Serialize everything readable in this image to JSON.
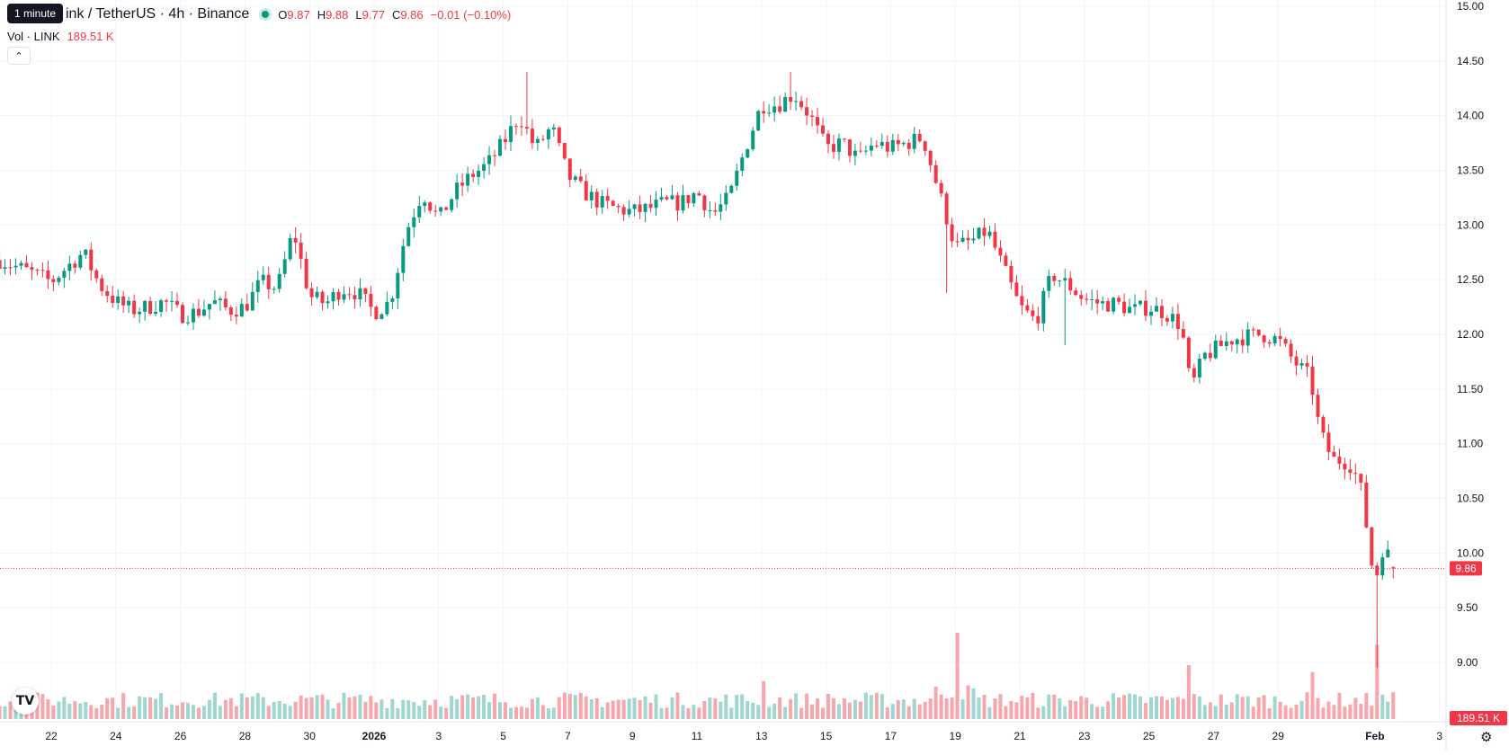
{
  "tooltip": "1 minute",
  "header": {
    "symbol": "Chainlink / TetherUS · 4h · Binance",
    "visible_symbol": "ink / TetherUS · 4h · Binance",
    "ohlc": [
      {
        "key": "O",
        "value": "9.87"
      },
      {
        "key": "H",
        "value": "9.88"
      },
      {
        "key": "L",
        "value": "9.77"
      },
      {
        "key": "C",
        "value": "9.86"
      }
    ],
    "change": "−0.01 (−0.10%)"
  },
  "volume_legend": {
    "label": "Vol · LINK",
    "value": "189.51 K"
  },
  "price_axis": {
    "ticks": [
      "15.00",
      "14.50",
      "14.00",
      "13.50",
      "13.00",
      "12.50",
      "12.00",
      "11.50",
      "11.00",
      "10.50",
      "10.00",
      "9.50",
      "9.00"
    ],
    "last_price": "9.86",
    "last_volume": "189.51 K"
  },
  "time_axis": {
    "labels": [
      "22",
      "24",
      "26",
      "28",
      "30",
      "2026",
      "3",
      "5",
      "7",
      "9",
      "11",
      "13",
      "15",
      "17",
      "19",
      "21",
      "23",
      "25",
      "27",
      "29",
      "Feb",
      "3"
    ]
  },
  "icons": {
    "logo": "tradingview-logo-icon",
    "settings": "gear-icon",
    "collapse": "chevron-up-icon"
  },
  "colors": {
    "up": "#089981",
    "down": "#f23645",
    "vol_up": "#9fd6cf",
    "vol_down": "#f7a6ac"
  },
  "chart_data": {
    "type": "candlestick",
    "interval": "4h",
    "ylim": [
      8.75,
      15.0
    ],
    "x_unit": "day index (0 = Dec 22, 10 = Jan 1 2026, 41 = Feb 1, 43 = Feb 3)",
    "xlim": [
      -1.62,
      42.7
    ],
    "grid": true,
    "last_price": 9.86,
    "keypoints": [
      [
        -1.6,
        12.68
      ],
      [
        -0.5,
        12.55
      ],
      [
        0.0,
        12.48
      ],
      [
        0.5,
        12.62
      ],
      [
        1.0,
        12.75
      ],
      [
        1.5,
        12.45
      ],
      [
        2.0,
        12.3
      ],
      [
        2.5,
        12.22
      ],
      [
        3.0,
        12.25
      ],
      [
        3.5,
        12.3
      ],
      [
        4.0,
        12.18
      ],
      [
        4.5,
        12.2
      ],
      [
        5.0,
        12.3
      ],
      [
        5.5,
        12.22
      ],
      [
        6.0,
        12.25
      ],
      [
        6.5,
        12.48
      ],
      [
        7.0,
        12.42
      ],
      [
        7.5,
        12.95
      ],
      [
        8.0,
        12.35
      ],
      [
        8.5,
        12.28
      ],
      [
        9.0,
        12.42
      ],
      [
        9.5,
        12.38
      ],
      [
        10.0,
        12.2
      ],
      [
        10.5,
        12.3
      ],
      [
        11.0,
        12.95
      ],
      [
        11.5,
        13.3
      ],
      [
        12.0,
        13.05
      ],
      [
        12.5,
        13.3
      ],
      [
        13.0,
        13.45
      ],
      [
        13.5,
        13.55
      ],
      [
        14.0,
        13.75
      ],
      [
        14.5,
        14.0
      ],
      [
        15.0,
        13.7
      ],
      [
        15.5,
        13.9
      ],
      [
        16.0,
        13.45
      ],
      [
        16.5,
        13.3
      ],
      [
        17.0,
        13.2
      ],
      [
        17.5,
        13.15
      ],
      [
        18.0,
        13.12
      ],
      [
        18.5,
        13.15
      ],
      [
        19.0,
        13.2
      ],
      [
        19.5,
        13.2
      ],
      [
        20.0,
        13.3
      ],
      [
        20.5,
        13.1
      ],
      [
        21.0,
        13.25
      ],
      [
        21.5,
        13.7
      ],
      [
        22.0,
        14.1
      ],
      [
        22.5,
        14.1
      ],
      [
        23.0,
        14.2
      ],
      [
        23.5,
        14.0
      ],
      [
        24.0,
        13.7
      ],
      [
        24.5,
        13.75
      ],
      [
        25.0,
        13.6
      ],
      [
        25.5,
        13.75
      ],
      [
        26.0,
        13.7
      ],
      [
        26.5,
        13.75
      ],
      [
        27.0,
        13.8
      ],
      [
        27.5,
        13.3
      ],
      [
        28.0,
        12.8
      ],
      [
        28.5,
        12.85
      ],
      [
        29.0,
        12.95
      ],
      [
        29.5,
        12.6
      ],
      [
        30.0,
        12.25
      ],
      [
        30.5,
        12.12
      ],
      [
        31.0,
        12.55
      ],
      [
        31.5,
        12.45
      ],
      [
        32.0,
        12.32
      ],
      [
        32.5,
        12.28
      ],
      [
        33.0,
        12.28
      ],
      [
        33.5,
        12.22
      ],
      [
        34.0,
        12.25
      ],
      [
        34.5,
        12.2
      ],
      [
        35.0,
        12.08
      ],
      [
        35.3,
        11.5
      ],
      [
        35.7,
        11.8
      ],
      [
        36.0,
        11.85
      ],
      [
        36.5,
        11.95
      ],
      [
        37.0,
        11.98
      ],
      [
        37.5,
        12.0
      ],
      [
        38.0,
        11.95
      ],
      [
        38.5,
        11.75
      ],
      [
        39.0,
        11.6
      ],
      [
        39.3,
        11.1
      ],
      [
        39.7,
        10.85
      ],
      [
        40.0,
        10.85
      ],
      [
        40.3,
        10.8
      ],
      [
        40.6,
        10.55
      ],
      [
        40.85,
        10.0
      ],
      [
        41.0,
        9.7
      ],
      [
        41.2,
        10.05
      ],
      [
        41.5,
        9.95
      ],
      [
        41.7,
        9.86
      ]
    ],
    "notable_wicks": [
      [
        27.8,
        12.38
      ],
      [
        41.05,
        8.95
      ],
      [
        14.8,
        14.4
      ],
      [
        22.9,
        14.4
      ],
      [
        31.4,
        11.9
      ]
    ],
    "volume_spikes": [
      [
        28.0,
        0.64
      ],
      [
        35.3,
        0.4
      ],
      [
        41.1,
        0.55
      ],
      [
        39.0,
        0.35
      ],
      [
        22.0,
        0.28
      ]
    ]
  }
}
